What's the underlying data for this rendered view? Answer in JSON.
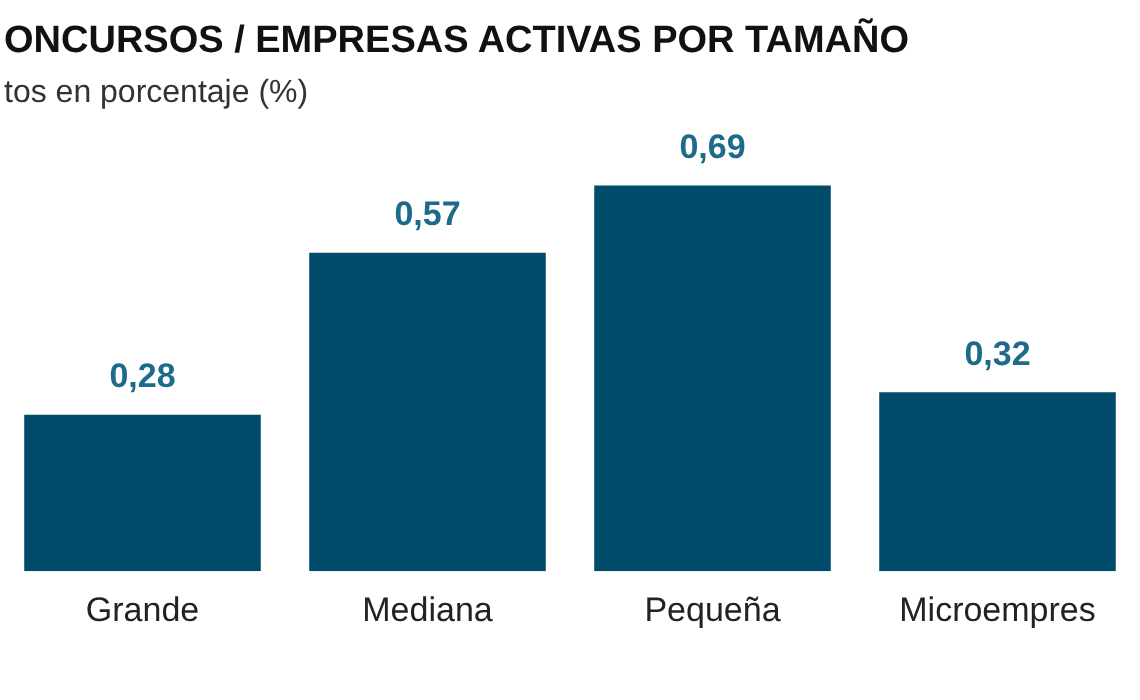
{
  "chart_data": {
    "type": "bar",
    "title": "ONCURSOS / EMPRESAS ACTIVAS POR TAMAÑO",
    "subtitle": "tos en porcentaje (%)",
    "categories": [
      "Grande",
      "Mediana",
      "Pequeña",
      "Microempres"
    ],
    "values": [
      0.28,
      0.57,
      0.69,
      0.32
    ],
    "color": "#004a6a",
    "value_labels": [
      "0,28",
      "0,57",
      "0,69",
      "0,32"
    ]
  }
}
